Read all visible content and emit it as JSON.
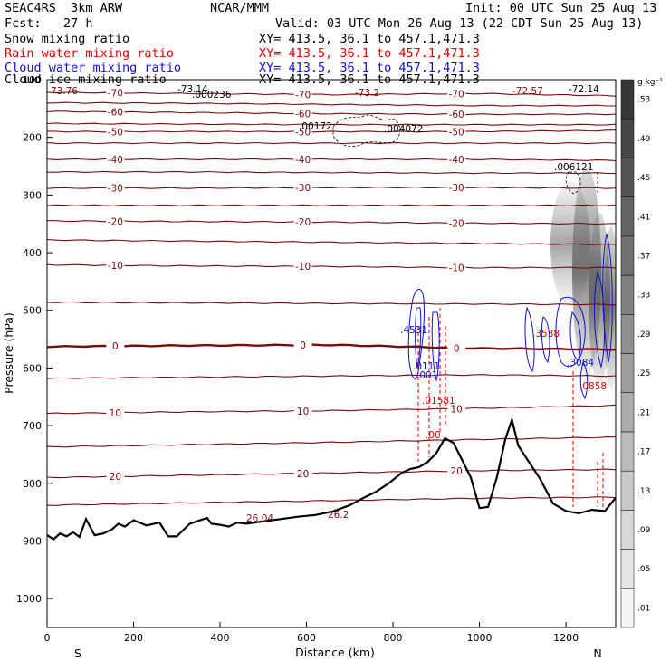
{
  "header": {
    "model": "SEAC4RS  3km ARW",
    "org": "NCAR/MMM",
    "init": "Init: 00 UTC Sun 25 Aug 13",
    "fcst": "Fcst:   27 h",
    "valid": "Valid: 03 UTC Mon 26 Aug 13 (22 CDT Sun 25 Aug 13)",
    "lines": [
      {
        "label": "Snow mixing ratio",
        "xy": "XY= 413.5, 36.1 to 457.1,471.3",
        "color": "#000000"
      },
      {
        "label": "Rain water mixing ratio",
        "xy": "XY= 413.5, 36.1 to 457.1,471.3",
        "color": "#e00000"
      },
      {
        "label": "Cloud water mixing ratio",
        "xy": "XY= 413.5, 36.1 to 457.1,471.3",
        "color": "#1010d0"
      },
      {
        "label": "Cloud ice mixing ratio",
        "xy": "XY= 413.5, 36.1 to 457.1,471.3",
        "color": "#000000"
      }
    ]
  },
  "colorbar": {
    "unit": "g kg⁻¹",
    "ticks": [
      ".01",
      ".05",
      ".09",
      ".13",
      ".17",
      ".21",
      ".25",
      ".29",
      ".33",
      ".37",
      ".41",
      ".45",
      ".49",
      ".53"
    ]
  },
  "chart_data": {
    "type": "cross-section",
    "xlabel": "Distance (km)",
    "ylabel": "Pressure (hPa)",
    "xlim": [
      0,
      1315
    ],
    "ylim": [
      1050,
      100
    ],
    "xticks": [
      0,
      200,
      400,
      600,
      800,
      1000,
      1200
    ],
    "yticks": [
      100,
      200,
      300,
      400,
      500,
      600,
      700,
      800,
      900,
      1000
    ],
    "endpoints": {
      "left": "S",
      "right": "N"
    },
    "temperature_contours": [
      {
        "level": -70,
        "p": [
          122,
          124,
          126,
          124,
          128
        ]
      },
      {
        "level": -65,
        "p": [
          140,
          141,
          143,
          145,
          145
        ]
      },
      {
        "level": -60,
        "p": [
          155,
          157,
          159,
          160,
          160
        ]
      },
      {
        "level": -55,
        "p": [
          176,
          177,
          178,
          178,
          178
        ]
      },
      {
        "level": -50,
        "p": [
          190,
          190,
          190,
          190,
          188
        ]
      },
      {
        "level": -45,
        "p": [
          210,
          210,
          210,
          210,
          210
        ]
      },
      {
        "level": -40,
        "p": [
          238,
          238,
          238,
          238,
          240
        ]
      },
      {
        "level": -35,
        "p": [
          260,
          260,
          261,
          262,
          262
        ]
      },
      {
        "level": -30,
        "p": [
          288,
          288,
          287,
          287,
          288
        ]
      },
      {
        "level": -25,
        "p": [
          318,
          318,
          318,
          318,
          318
        ]
      },
      {
        "level": -20,
        "p": [
          345,
          346,
          347,
          349,
          350
        ]
      },
      {
        "level": -15,
        "p": [
          378,
          380,
          382,
          384,
          386
        ]
      },
      {
        "level": -10,
        "p": [
          421,
          423,
          424,
          426,
          426
        ]
      },
      {
        "level": -5,
        "p": [
          486,
          487,
          488,
          489,
          490
        ]
      },
      {
        "level": 0,
        "p": [
          563,
          561,
          560,
          566,
          568
        ]
      },
      {
        "level": 5,
        "p": [
          618,
          616,
          614,
          612,
          614
        ]
      },
      {
        "level": 10,
        "p": [
          679,
          676,
          674,
          670,
          665
        ]
      },
      {
        "level": 15,
        "p": [
          737,
          733,
          729,
          724,
          720
        ]
      },
      {
        "level": 20,
        "p": [
          790,
          786,
          782,
          778,
          776
        ]
      },
      {
        "level": 25,
        "p": [
          838,
          834,
          830,
          826,
          824
        ]
      }
    ],
    "contour_x": [
      0,
      330,
      660,
      990,
      1315
    ],
    "terrain": {
      "x": [
        0,
        15,
        30,
        45,
        60,
        75,
        90,
        110,
        130,
        150,
        165,
        180,
        200,
        230,
        260,
        280,
        300,
        330,
        350,
        370,
        380,
        400,
        420,
        440,
        460,
        500,
        540,
        580,
        620,
        660,
        700,
        730,
        760,
        790,
        820,
        840,
        860,
        880,
        900,
        920,
        940,
        960,
        980,
        1000,
        1020,
        1040,
        1060,
        1075,
        1090,
        1110,
        1140,
        1170,
        1200,
        1230,
        1260,
        1290,
        1315
      ],
      "p": [
        890,
        897,
        887,
        892,
        885,
        893,
        862,
        890,
        887,
        880,
        870,
        875,
        864,
        873,
        868,
        892,
        892,
        870,
        865,
        860,
        870,
        872,
        875,
        868,
        870,
        866,
        862,
        858,
        855,
        849,
        838,
        826,
        815,
        800,
        782,
        775,
        772,
        763,
        748,
        722,
        730,
        760,
        790,
        843,
        841,
        790,
        723,
        690,
        735,
        758,
        792,
        835,
        848,
        852,
        846,
        848,
        825
      ]
    },
    "annotations": [
      {
        "text": "73.76"
      },
      {
        "text": "-73.14"
      },
      {
        "text": ".000236"
      },
      {
        "text": "-73.2"
      },
      {
        "text": "-72.57"
      },
      {
        "text": "-72.14"
      },
      {
        "text": ".00172"
      },
      {
        "text": ".004072"
      },
      {
        "text": ".006121"
      },
      {
        "text": ".4531"
      },
      {
        "text": ".3084"
      },
      {
        "text": ".01581"
      },
      {
        "text": ".0858"
      },
      {
        "text": ".3538"
      },
      {
        "text": ".0111"
      },
      {
        "text": ".001"
      },
      {
        "text": ".00"
      },
      {
        "text": "26.04"
      },
      {
        "text": "26.2"
      }
    ]
  }
}
